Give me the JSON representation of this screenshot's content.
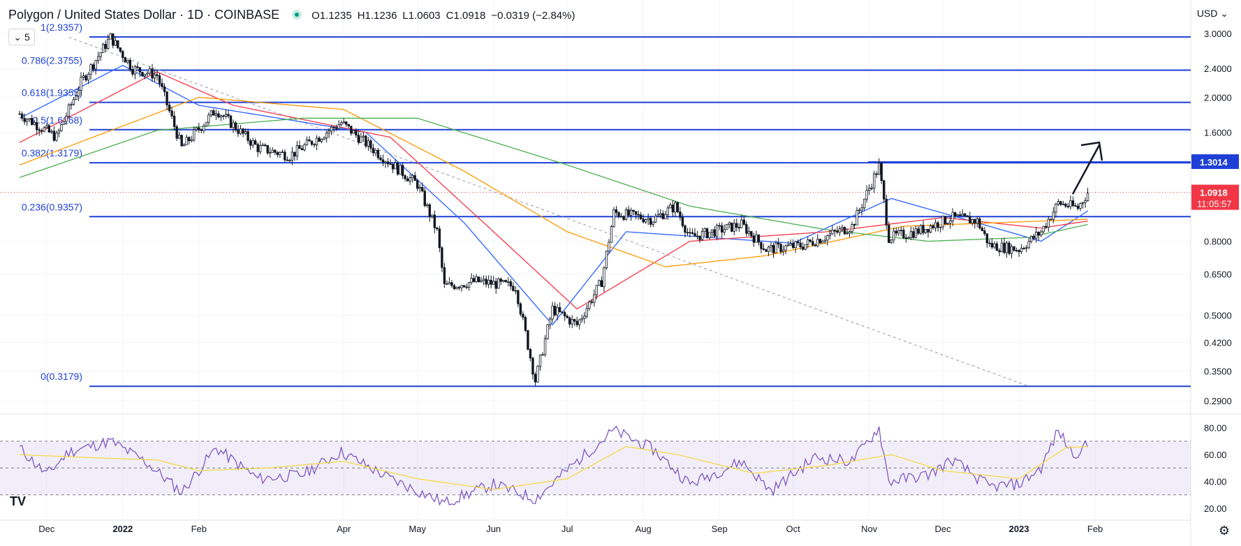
{
  "header": {
    "symbol": "Polygon / United States Dollar · 1D · COINBASE",
    "open": "O1.1235",
    "high": "H1.1236",
    "low": "L1.0603",
    "close": "C1.0918",
    "change": "−0.0319 (−2.84%)"
  },
  "interval_label": "5",
  "currency": "USD",
  "colors": {
    "fib_line": "#1e40d6",
    "up_candle": "#ffffff",
    "down_candle": "#131722",
    "ma_blue": "#2962ff",
    "ma_red": "#f23645",
    "ma_orange": "#ff9800",
    "ma_green": "#4caf50",
    "rsi_line": "#7e57c2",
    "rsi_signal": "#f5d94a",
    "price_tag": "#f23645",
    "level_tag": "#1e40d6"
  },
  "chart_data": [
    {
      "type": "candlestick",
      "title": "Polygon / United States Dollar · 1D · COINBASE",
      "scale": "log",
      "x_ticks": [
        "Dec",
        "2022",
        "Feb",
        "Apr",
        "May",
        "Jun",
        "Jul",
        "Aug",
        "Sep",
        "Oct",
        "Nov",
        "Dec",
        "2023",
        "Feb"
      ],
      "y_ticks": [
        "3.0000",
        "2.4000",
        "2.0000",
        "1.6000",
        "1.3014",
        "1.0918",
        "0.8000",
        "0.6500",
        "0.5000",
        "0.4200",
        "0.3500",
        "0.2900"
      ],
      "ylim": [
        0.27,
        3.25
      ],
      "fib_levels": [
        {
          "label": "1(2.9357)",
          "value": 2.9357
        },
        {
          "label": "0.786(2.3755)",
          "value": 2.3755
        },
        {
          "label": "0.618(1.9355)",
          "value": 1.9355
        },
        {
          "label": "0.5(1.6268)",
          "value": 1.6268
        },
        {
          "label": "0.382(1.3179)",
          "value": 1.3179
        },
        {
          "label": "0.236(0.9357)",
          "value": 0.9357
        },
        {
          "label": "0(0.3179)",
          "value": 0.3179
        }
      ],
      "resistance_label": "1.3014",
      "last_price": "1.0918",
      "countdown": "11:05:57",
      "price_path": [
        [
          "2021-11-20",
          1.8
        ],
        [
          "2021-12-05",
          1.55
        ],
        [
          "2021-12-15",
          2.2
        ],
        [
          "2021-12-27",
          2.93
        ],
        [
          "2022-01-05",
          2.4
        ],
        [
          "2022-01-15",
          2.3
        ],
        [
          "2022-01-25",
          1.45
        ],
        [
          "2022-02-08",
          1.85
        ],
        [
          "2022-02-25",
          1.45
        ],
        [
          "2022-03-10",
          1.38
        ],
        [
          "2022-03-31",
          1.7
        ],
        [
          "2022-04-15",
          1.4
        ],
        [
          "2022-05-01",
          1.15
        ],
        [
          "2022-05-09",
          0.85
        ],
        [
          "2022-05-12",
          0.6
        ],
        [
          "2022-05-25",
          0.62
        ],
        [
          "2022-06-10",
          0.6
        ],
        [
          "2022-06-18",
          0.33
        ],
        [
          "2022-06-25",
          0.52
        ],
        [
          "2022-07-05",
          0.47
        ],
        [
          "2022-07-15",
          0.62
        ],
        [
          "2022-07-20",
          0.96
        ],
        [
          "2022-08-05",
          0.92
        ],
        [
          "2022-08-14",
          1.0
        ],
        [
          "2022-08-20",
          0.82
        ],
        [
          "2022-09-10",
          0.89
        ],
        [
          "2022-09-20",
          0.76
        ],
        [
          "2022-10-05",
          0.78
        ],
        [
          "2022-10-25",
          0.88
        ],
        [
          "2022-11-05",
          1.29
        ],
        [
          "2022-11-09",
          0.82
        ],
        [
          "2022-11-20",
          0.85
        ],
        [
          "2022-12-05",
          0.93
        ],
        [
          "2022-12-15",
          0.91
        ],
        [
          "2022-12-20",
          0.78
        ],
        [
          "2023-01-01",
          0.76
        ],
        [
          "2023-01-10",
          0.85
        ],
        [
          "2023-01-17",
          1.02
        ],
        [
          "2023-01-25",
          0.99
        ],
        [
          "2023-01-29",
          1.09
        ]
      ],
      "moving_averages": [
        {
          "color": "blue",
          "path": [
            [
              "2021-11-20",
              1.75
            ],
            [
              "2022-01-01",
              2.45
            ],
            [
              "2022-02-01",
              1.9
            ],
            [
              "2022-04-10",
              1.6
            ],
            [
              "2022-05-20",
              0.9
            ],
            [
              "2022-06-25",
              0.47
            ],
            [
              "2022-07-25",
              0.85
            ],
            [
              "2022-10-01",
              0.79
            ],
            [
              "2022-11-10",
              1.05
            ],
            [
              "2022-12-20",
              0.88
            ],
            [
              "2023-01-10",
              0.8
            ],
            [
              "2023-01-29",
              0.97
            ]
          ]
        },
        {
          "color": "red",
          "path": [
            [
              "2021-11-20",
              1.5
            ],
            [
              "2022-01-15",
              2.35
            ],
            [
              "2022-02-15",
              1.9
            ],
            [
              "2022-04-20",
              1.55
            ],
            [
              "2022-06-01",
              0.85
            ],
            [
              "2022-07-05",
              0.52
            ],
            [
              "2022-08-20",
              0.8
            ],
            [
              "2022-10-15",
              0.85
            ],
            [
              "2022-12-01",
              0.93
            ],
            [
              "2023-01-10",
              0.87
            ],
            [
              "2023-01-29",
              0.91
            ]
          ]
        },
        {
          "color": "orange",
          "path": [
            [
              "2021-11-20",
              1.3
            ],
            [
              "2022-02-01",
              2.0
            ],
            [
              "2022-04-01",
              1.85
            ],
            [
              "2022-05-20",
              1.25
            ],
            [
              "2022-07-01",
              0.85
            ],
            [
              "2022-08-10",
              0.68
            ],
            [
              "2022-09-20",
              0.73
            ],
            [
              "2022-11-15",
              0.88
            ],
            [
              "2023-01-29",
              0.92
            ]
          ]
        },
        {
          "color": "green",
          "path": [
            [
              "2021-11-20",
              1.2
            ],
            [
              "2022-01-15",
              1.62
            ],
            [
              "2022-03-15",
              1.75
            ],
            [
              "2022-05-01",
              1.75
            ],
            [
              "2022-07-01",
              1.3
            ],
            [
              "2022-08-20",
              1.0
            ],
            [
              "2022-10-15",
              0.86
            ],
            [
              "2022-11-25",
              0.8
            ],
            [
              "2023-01-05",
              0.82
            ],
            [
              "2023-01-29",
              0.89
            ]
          ]
        }
      ],
      "trendline": {
        "start": [
          "2021-12-10",
          2.93
        ],
        "end": [
          "2023-01-05",
          0.318
        ]
      }
    },
    {
      "type": "line",
      "title": "RSI",
      "y_ticks": [
        "80.00",
        "60.00",
        "40.00",
        "20.00"
      ],
      "ylim": [
        20,
        85
      ],
      "bands": [
        70,
        50,
        30
      ],
      "rsi_path": [
        [
          "2021-11-20",
          65
        ],
        [
          "2021-12-01",
          45
        ],
        [
          "2021-12-10",
          62
        ],
        [
          "2021-12-27",
          70
        ],
        [
          "2022-01-10",
          55
        ],
        [
          "2022-01-25",
          32
        ],
        [
          "2022-02-08",
          65
        ],
        [
          "2022-02-25",
          42
        ],
        [
          "2022-03-15",
          45
        ],
        [
          "2022-03-31",
          62
        ],
        [
          "2022-04-20",
          42
        ],
        [
          "2022-05-12",
          24
        ],
        [
          "2022-06-01",
          38
        ],
        [
          "2022-06-18",
          27
        ],
        [
          "2022-07-05",
          55
        ],
        [
          "2022-07-20",
          78
        ],
        [
          "2022-08-05",
          64
        ],
        [
          "2022-08-20",
          38
        ],
        [
          "2022-09-10",
          55
        ],
        [
          "2022-09-22",
          33
        ],
        [
          "2022-10-10",
          58
        ],
        [
          "2022-10-25",
          55
        ],
        [
          "2022-11-05",
          80
        ],
        [
          "2022-11-09",
          40
        ],
        [
          "2022-11-25",
          45
        ],
        [
          "2022-12-05",
          56
        ],
        [
          "2022-12-20",
          36
        ],
        [
          "2023-01-01",
          38
        ],
        [
          "2023-01-10",
          50
        ],
        [
          "2023-01-17",
          78
        ],
        [
          "2023-01-23",
          60
        ],
        [
          "2023-01-29",
          67
        ]
      ],
      "signal_path": [
        [
          "2021-11-20",
          60
        ],
        [
          "2021-12-15",
          58
        ],
        [
          "2022-01-15",
          56
        ],
        [
          "2022-02-01",
          48
        ],
        [
          "2022-03-01",
          50
        ],
        [
          "2022-04-01",
          55
        ],
        [
          "2022-05-01",
          42
        ],
        [
          "2022-06-01",
          34
        ],
        [
          "2022-07-01",
          42
        ],
        [
          "2022-07-25",
          66
        ],
        [
          "2022-08-15",
          60
        ],
        [
          "2022-09-15",
          46
        ],
        [
          "2022-10-15",
          52
        ],
        [
          "2022-11-10",
          60
        ],
        [
          "2022-12-01",
          48
        ],
        [
          "2023-01-01",
          42
        ],
        [
          "2023-01-20",
          65
        ],
        [
          "2023-01-29",
          66
        ]
      ]
    }
  ]
}
